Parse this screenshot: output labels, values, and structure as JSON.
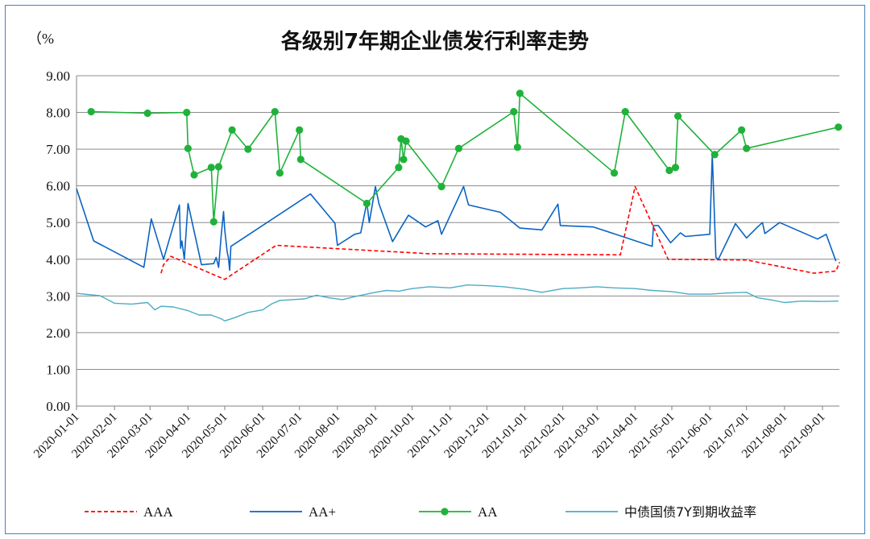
{
  "chart_data": {
    "type": "line",
    "title": "各级别7年期企业债发行利率走势",
    "ylabel": "（%",
    "ylim": [
      0,
      9
    ],
    "yticks": [
      "0.00",
      "1.00",
      "2.00",
      "3.00",
      "4.00",
      "5.00",
      "6.00",
      "7.00",
      "8.00",
      "9.00"
    ],
    "x_categories": [
      "2020-01-01",
      "2020-02-01",
      "2020-03-01",
      "2020-04-01",
      "2020-05-01",
      "2020-06-01",
      "2020-07-01",
      "2020-08-01",
      "2020-09-01",
      "2020-10-01",
      "2020-11-01",
      "2020-12-01",
      "2021-01-01",
      "2021-02-01",
      "2021-03-01",
      "2021-04-01",
      "2021-05-01",
      "2021-06-01",
      "2021-07-01",
      "2021-08-01",
      "2021-09-01"
    ],
    "grid": true,
    "legend_position": "bottom",
    "series": [
      {
        "name": "AAA",
        "color": "#ff0000",
        "style": "dashed",
        "points": [
          [
            "2020-03-10",
            3.62
          ],
          [
            "2020-03-12",
            3.85
          ],
          [
            "2020-03-18",
            4.08
          ],
          [
            "2020-05-01",
            3.45
          ],
          [
            "2020-06-12",
            4.38
          ],
          [
            "2020-10-15",
            4.15
          ],
          [
            "2021-03-20",
            4.12
          ],
          [
            "2021-04-01",
            5.98
          ],
          [
            "2021-04-28",
            4.0
          ],
          [
            "2021-07-01",
            3.98
          ],
          [
            "2021-08-25",
            3.62
          ],
          [
            "2021-09-12",
            3.68
          ],
          [
            "2021-09-15",
            3.92
          ]
        ]
      },
      {
        "name": "AA+",
        "color": "#0b63c2",
        "style": "solid",
        "points": [
          [
            "2020-01-01",
            5.92
          ],
          [
            "2020-01-15",
            4.5
          ],
          [
            "2020-02-25",
            3.78
          ],
          [
            "2020-03-02",
            5.1
          ],
          [
            "2020-03-12",
            4.0
          ],
          [
            "2020-03-25",
            5.48
          ],
          [
            "2020-03-26",
            4.3
          ],
          [
            "2020-03-27",
            4.5
          ],
          [
            "2020-03-29",
            4.0
          ],
          [
            "2020-04-01",
            5.52
          ],
          [
            "2020-04-12",
            3.85
          ],
          [
            "2020-04-22",
            3.88
          ],
          [
            "2020-04-24",
            4.05
          ],
          [
            "2020-04-26",
            3.78
          ],
          [
            "2020-04-28",
            4.6
          ],
          [
            "2020-04-30",
            5.3
          ],
          [
            "2020-05-01",
            4.8
          ],
          [
            "2020-05-03",
            4.2
          ],
          [
            "2020-05-04",
            4.05
          ],
          [
            "2020-05-05",
            3.7
          ],
          [
            "2020-05-06",
            4.35
          ],
          [
            "2020-07-10",
            5.78
          ],
          [
            "2020-07-30",
            4.98
          ],
          [
            "2020-08-01",
            4.38
          ],
          [
            "2020-08-15",
            4.68
          ],
          [
            "2020-08-20",
            4.72
          ],
          [
            "2020-08-25",
            5.55
          ],
          [
            "2020-08-27",
            5.0
          ],
          [
            "2020-09-01",
            5.98
          ],
          [
            "2020-09-04",
            5.5
          ],
          [
            "2020-09-15",
            4.48
          ],
          [
            "2020-09-28",
            5.2
          ],
          [
            "2020-10-12",
            4.88
          ],
          [
            "2020-10-22",
            5.05
          ],
          [
            "2020-10-25",
            4.68
          ],
          [
            "2020-11-12",
            5.98
          ],
          [
            "2020-11-16",
            5.48
          ],
          [
            "2020-12-12",
            5.28
          ],
          [
            "2020-12-28",
            4.85
          ],
          [
            "2021-01-15",
            4.8
          ],
          [
            "2021-01-28",
            5.5
          ],
          [
            "2021-01-30",
            4.92
          ],
          [
            "2021-02-26",
            4.88
          ],
          [
            "2021-04-15",
            4.35
          ],
          [
            "2021-04-16",
            4.92
          ],
          [
            "2021-04-20",
            4.92
          ],
          [
            "2021-04-30",
            4.45
          ],
          [
            "2021-05-08",
            4.72
          ],
          [
            "2021-05-12",
            4.62
          ],
          [
            "2021-06-01",
            4.68
          ],
          [
            "2021-06-03",
            6.85
          ],
          [
            "2021-06-06",
            4.05
          ],
          [
            "2021-06-08",
            4.0
          ],
          [
            "2021-06-22",
            4.97
          ],
          [
            "2021-07-01",
            4.58
          ],
          [
            "2021-07-10",
            4.88
          ],
          [
            "2021-07-14",
            5.0
          ],
          [
            "2021-07-16",
            4.7
          ],
          [
            "2021-07-28",
            5.0
          ],
          [
            "2021-08-28",
            4.55
          ],
          [
            "2021-09-04",
            4.68
          ],
          [
            "2021-09-12",
            3.95
          ]
        ]
      },
      {
        "name": "AA",
        "color": "#1fb23a",
        "style": "solid-marker",
        "points": [
          [
            "2020-01-13",
            8.02
          ],
          [
            "2020-02-28",
            7.98
          ],
          [
            "2020-03-31",
            8.0
          ],
          [
            "2020-04-01",
            7.02
          ],
          [
            "2020-04-06",
            6.3
          ],
          [
            "2020-04-20",
            6.5
          ],
          [
            "2020-04-22",
            5.02
          ],
          [
            "2020-04-26",
            6.52
          ],
          [
            "2020-05-07",
            7.52
          ],
          [
            "2020-05-20",
            7.0
          ],
          [
            "2020-06-11",
            8.02
          ],
          [
            "2020-06-15",
            6.35
          ],
          [
            "2020-07-01",
            7.52
          ],
          [
            "2020-07-02",
            6.72
          ],
          [
            "2020-08-25",
            5.52
          ],
          [
            "2020-09-20",
            6.5
          ],
          [
            "2020-09-22",
            7.28
          ],
          [
            "2020-09-24",
            6.72
          ],
          [
            "2020-09-26",
            7.22
          ],
          [
            "2020-10-25",
            5.98
          ],
          [
            "2020-11-08",
            7.02
          ],
          [
            "2020-12-23",
            8.02
          ],
          [
            "2020-12-26",
            7.05
          ],
          [
            "2020-12-28",
            8.52
          ],
          [
            "2021-03-15",
            6.35
          ],
          [
            "2021-03-24",
            8.02
          ],
          [
            "2021-04-29",
            6.42
          ],
          [
            "2021-05-04",
            6.5
          ],
          [
            "2021-05-06",
            7.9
          ],
          [
            "2021-06-05",
            6.85
          ],
          [
            "2021-06-27",
            7.52
          ],
          [
            "2021-07-01",
            7.02
          ],
          [
            "2021-09-14",
            7.6
          ]
        ]
      },
      {
        "name": "中债国债7Y到期收益率",
        "color": "#4bacc6",
        "style": "solid-thin",
        "points": [
          [
            "2020-01-01",
            3.07
          ],
          [
            "2020-01-10",
            3.04
          ],
          [
            "2020-01-20",
            3.01
          ],
          [
            "2020-02-01",
            2.8
          ],
          [
            "2020-02-15",
            2.78
          ],
          [
            "2020-02-28",
            2.82
          ],
          [
            "2020-03-05",
            2.62
          ],
          [
            "2020-03-10",
            2.72
          ],
          [
            "2020-03-20",
            2.7
          ],
          [
            "2020-04-01",
            2.6
          ],
          [
            "2020-04-10",
            2.48
          ],
          [
            "2020-04-20",
            2.48
          ],
          [
            "2020-04-28",
            2.38
          ],
          [
            "2020-05-01",
            2.32
          ],
          [
            "2020-05-10",
            2.42
          ],
          [
            "2020-05-20",
            2.55
          ],
          [
            "2020-06-01",
            2.62
          ],
          [
            "2020-06-08",
            2.78
          ],
          [
            "2020-06-15",
            2.88
          ],
          [
            "2020-06-25",
            2.9
          ],
          [
            "2020-07-05",
            2.92
          ],
          [
            "2020-07-15",
            3.02
          ],
          [
            "2020-07-25",
            2.95
          ],
          [
            "2020-08-05",
            2.9
          ],
          [
            "2020-08-15",
            2.98
          ],
          [
            "2020-09-01",
            3.1
          ],
          [
            "2020-09-10",
            3.15
          ],
          [
            "2020-09-20",
            3.13
          ],
          [
            "2020-10-01",
            3.2
          ],
          [
            "2020-10-15",
            3.25
          ],
          [
            "2020-11-01",
            3.22
          ],
          [
            "2020-11-15",
            3.3
          ],
          [
            "2020-12-01",
            3.28
          ],
          [
            "2020-12-15",
            3.25
          ],
          [
            "2021-01-01",
            3.18
          ],
          [
            "2021-01-15",
            3.1
          ],
          [
            "2021-02-01",
            3.2
          ],
          [
            "2021-02-15",
            3.22
          ],
          [
            "2021-03-01",
            3.25
          ],
          [
            "2021-03-15",
            3.22
          ],
          [
            "2021-04-01",
            3.2
          ],
          [
            "2021-04-15",
            3.15
          ],
          [
            "2021-05-01",
            3.12
          ],
          [
            "2021-05-15",
            3.05
          ],
          [
            "2021-06-01",
            3.05
          ],
          [
            "2021-06-15",
            3.08
          ],
          [
            "2021-07-01",
            3.1
          ],
          [
            "2021-07-10",
            2.95
          ],
          [
            "2021-07-20",
            2.9
          ],
          [
            "2021-08-01",
            2.82
          ],
          [
            "2021-08-15",
            2.86
          ],
          [
            "2021-09-01",
            2.85
          ],
          [
            "2021-09-14",
            2.86
          ]
        ]
      }
    ]
  }
}
